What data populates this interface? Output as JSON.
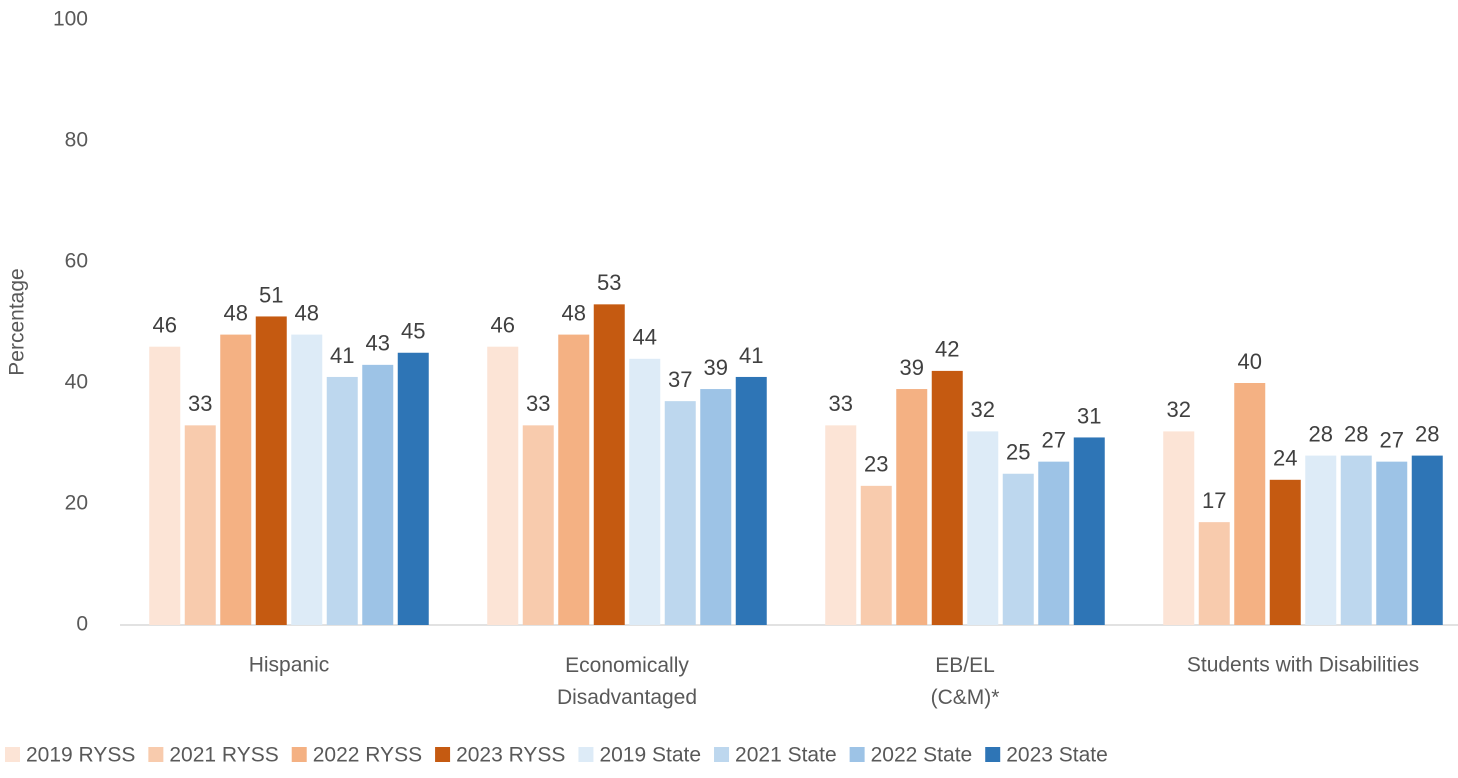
{
  "chart_data": {
    "type": "bar",
    "y_label": "Percentage",
    "categories": [
      "Hispanic",
      "Economically Disadvantaged",
      "EB/EL (C&M)*",
      "Students with Disabilities"
    ],
    "series": [
      {
        "name": "2019 RYSS",
        "color": "#fce4d6",
        "values": [
          46,
          46,
          33,
          32
        ]
      },
      {
        "name": "2021 RYSS",
        "color": "#f8cbad",
        "values": [
          33,
          33,
          23,
          17
        ]
      },
      {
        "name": "2022 RYSS",
        "color": "#f4b183",
        "values": [
          48,
          48,
          39,
          40
        ]
      },
      {
        "name": "2023 RYSS",
        "color": "#c55a11",
        "values": [
          51,
          53,
          42,
          24
        ]
      },
      {
        "name": "2019 State",
        "color": "#ddebf7",
        "values": [
          48,
          44,
          32,
          28
        ]
      },
      {
        "name": "2021 State",
        "color": "#bdd7ee",
        "values": [
          41,
          37,
          25,
          28
        ]
      },
      {
        "name": "2022 State",
        "color": "#9dc3e6",
        "values": [
          43,
          39,
          27,
          27
        ]
      },
      {
        "name": "2023 State",
        "color": "#2e75b6",
        "values": [
          45,
          41,
          31,
          28
        ]
      }
    ],
    "ylim": [
      0,
      100
    ],
    "yticks": [
      0,
      20,
      40,
      60,
      80,
      100
    ],
    "grid": false,
    "legend": "bottom"
  }
}
